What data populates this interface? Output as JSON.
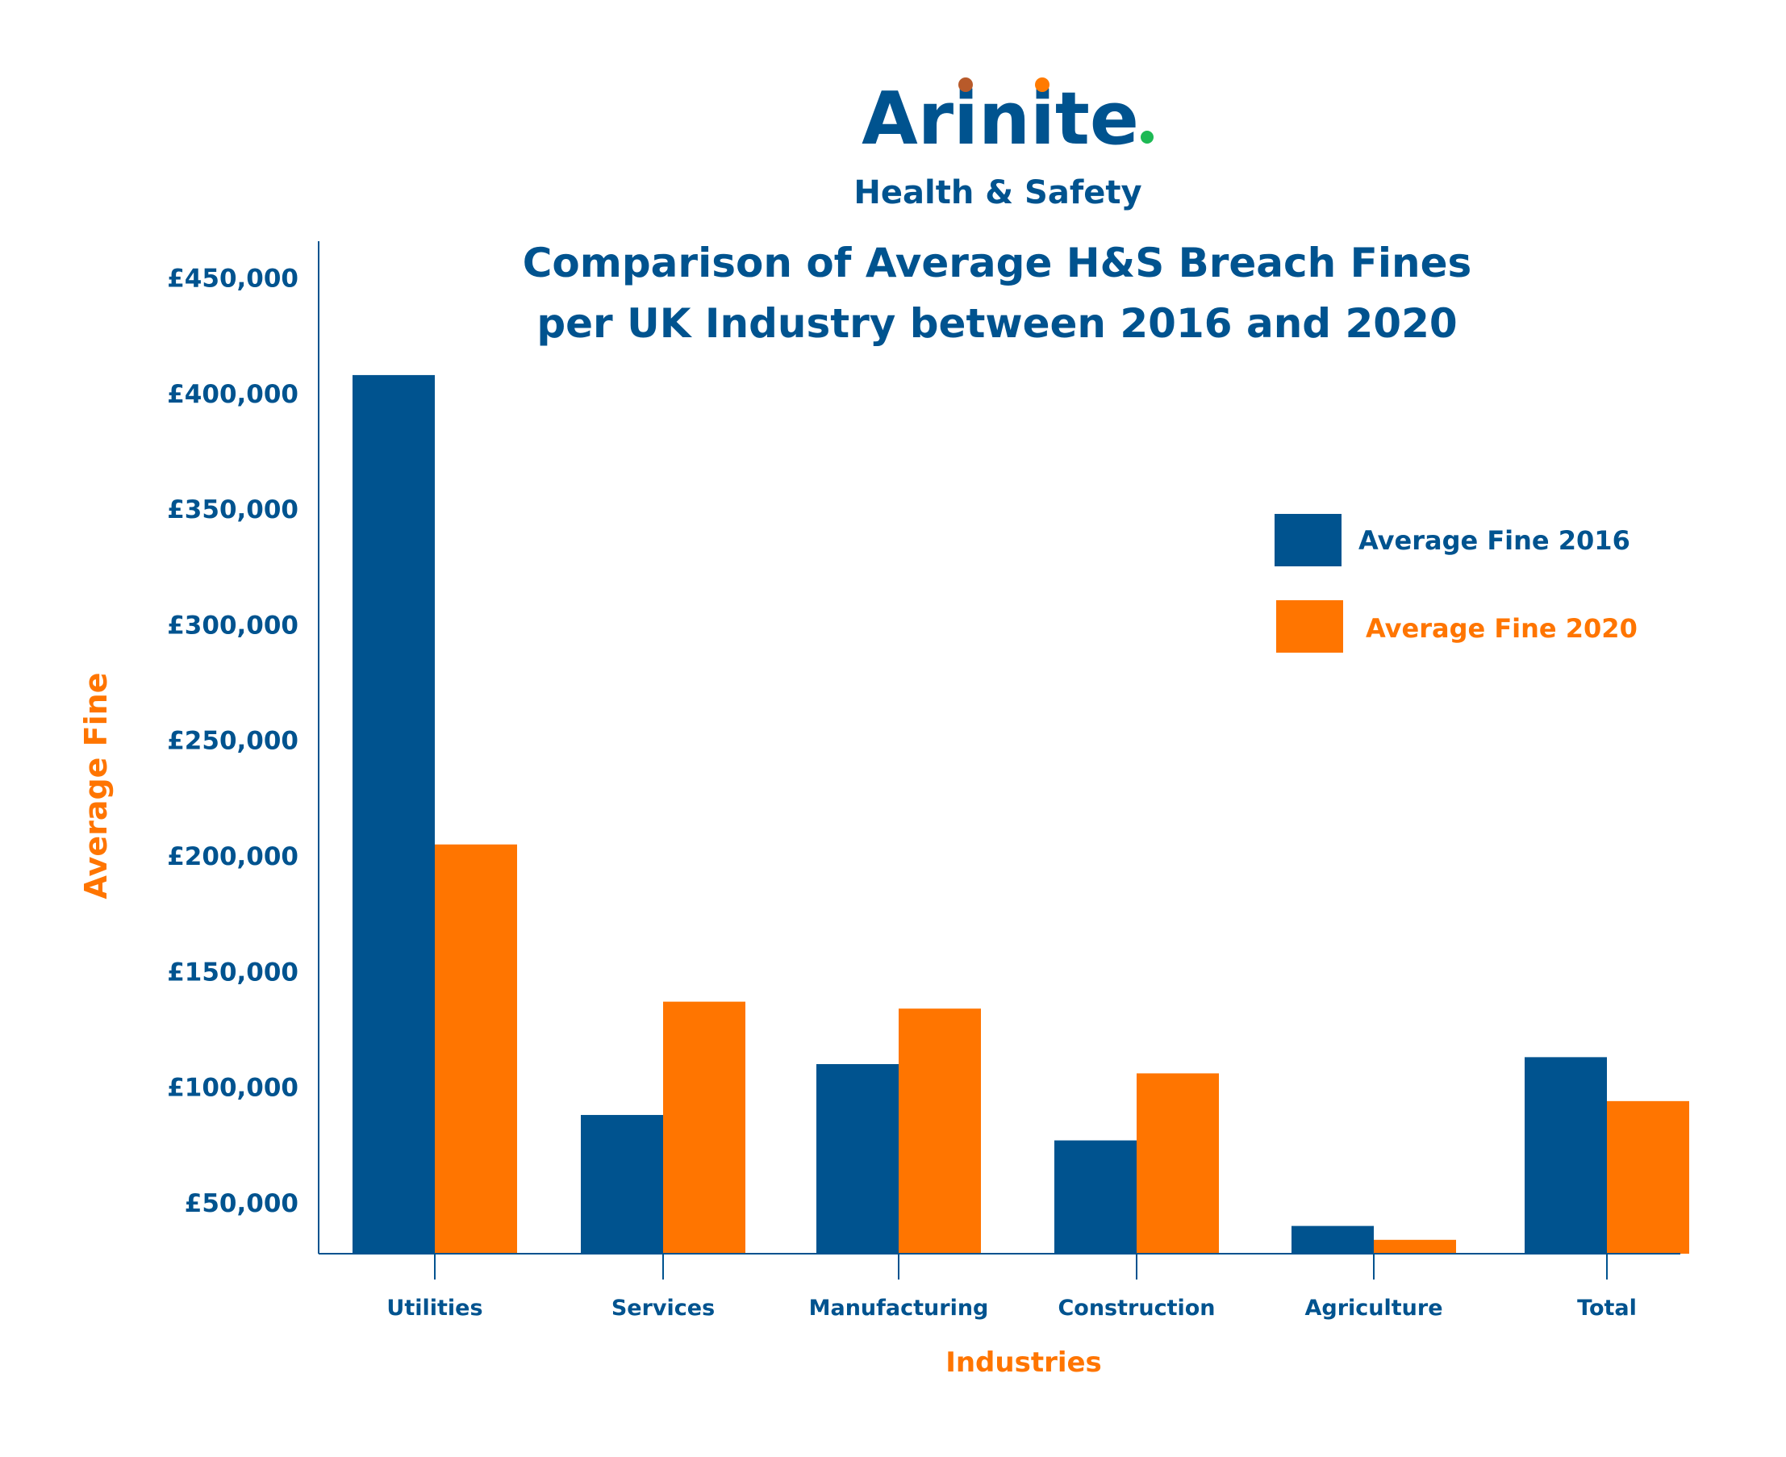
{
  "logo": {
    "brand": "Arinite",
    "tagline": "Health & Safety",
    "dot_colors": [
      "#b85a2a",
      "#ff7a00",
      "#1db954"
    ]
  },
  "chart_data": {
    "type": "bar",
    "title": [
      "Comparison of Average H&S Breach Fines",
      "per UK Industry between 2016 and 2020"
    ],
    "xlabel": "Industries",
    "ylabel": "Average Fine",
    "categories": [
      "Utilities",
      "Services",
      "Manufacturing",
      "Construction",
      "Agriculture",
      "Total"
    ],
    "series": [
      {
        "name": "Average Fine 2016",
        "color": "#00538f",
        "values": [
          408000,
          88000,
          110000,
          77000,
          40000,
          113000
        ]
      },
      {
        "name": "Average Fine 2020",
        "color": "#ff7500",
        "values": [
          205000,
          137000,
          134000,
          106000,
          34000,
          94000
        ]
      }
    ],
    "yticks": [
      "£50,000",
      "£100,000",
      "£150,000",
      "£200,000",
      "£250,000",
      "£300,000",
      "£350,000",
      "£400,000",
      "£450,000"
    ],
    "ytick_values": [
      50000,
      100000,
      150000,
      200000,
      250000,
      300000,
      350000,
      400000,
      450000
    ],
    "ylim": [
      28000,
      465000
    ],
    "grid": false,
    "legend_position": "top-right"
  }
}
